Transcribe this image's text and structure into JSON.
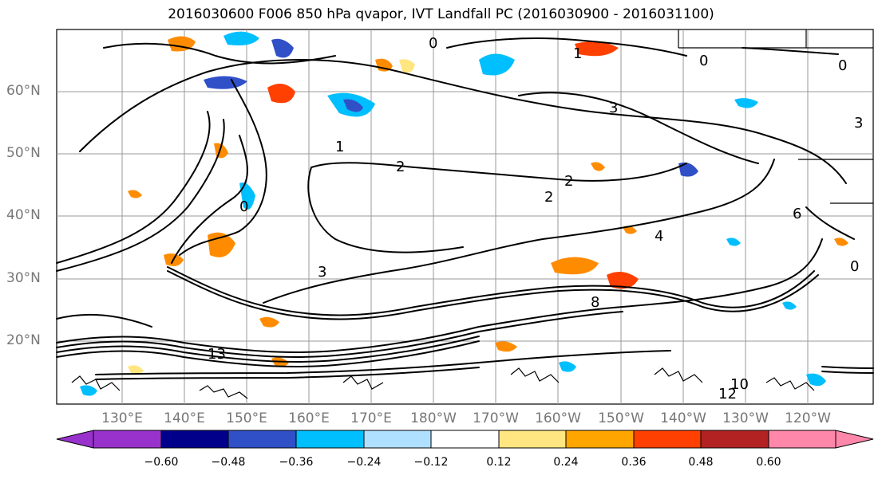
{
  "title": "2016030600 F006 850 hPa qvapor, IVT Landfall PC (2016030900 - 2016031100)",
  "lat_labels": [
    "60°N",
    "50°N",
    "40°N",
    "30°N",
    "20°N"
  ],
  "lon_labels": [
    "130°E",
    "140°E",
    "150°E",
    "160°E",
    "170°E",
    "180°W",
    "170°W",
    "160°W",
    "150°W",
    "140°W",
    "130°W",
    "120°W"
  ],
  "colorbar": {
    "ticks": [
      "−0.60",
      "−0.48",
      "−0.36",
      "−0.24",
      "−0.12",
      "0.12",
      "0.24",
      "0.36",
      "0.48",
      "0.60"
    ],
    "colors": [
      "#9932cc",
      "#00008b",
      "#3050c8",
      "#00bfff",
      "#b0e0ff",
      "#ffffff",
      "#ffe680",
      "#ffa500",
      "#ff4000",
      "#b22222",
      "#ff88aa"
    ]
  },
  "contour_labels": [
    "0",
    "1",
    "2",
    "3",
    "4",
    "6",
    "8",
    "10",
    "12",
    "13"
  ]
}
